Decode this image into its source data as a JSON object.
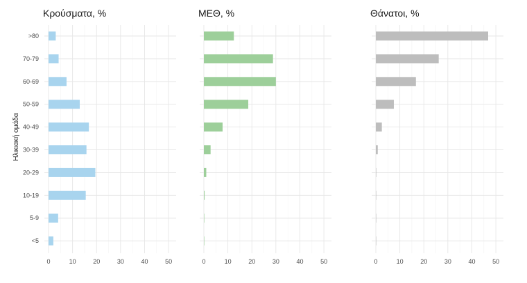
{
  "chart_data": {
    "type": "bar",
    "orientation": "horizontal",
    "ylabel": "Ηλικιακή ομάδα",
    "categories": [
      "<5",
      "5-9",
      "10-19",
      "20-29",
      "30-39",
      "40-49",
      "50-59",
      "60-69",
      "70-79",
      ">80"
    ],
    "xlim": [
      0,
      52
    ],
    "xticks": [
      0,
      10,
      20,
      30,
      40,
      50
    ],
    "grid": true,
    "panels": [
      {
        "title": "Κρούσματα, %",
        "color": "#a8d4ee",
        "values": [
          2.0,
          4.0,
          15.5,
          19.5,
          15.8,
          16.8,
          13.0,
          7.5,
          4.2,
          3.0
        ]
      },
      {
        "title": "ΜΕΘ, %",
        "color": "#9dcf9a",
        "values": [
          0.1,
          0.1,
          0.3,
          1.0,
          2.8,
          7.8,
          18.5,
          30.0,
          28.8,
          12.5
        ]
      },
      {
        "title": "Θάνατοι, %",
        "color": "#bdbdbd",
        "values": [
          0.0,
          0.0,
          0.1,
          0.2,
          0.8,
          2.5,
          7.5,
          16.7,
          26.2,
          46.8
        ]
      }
    ]
  }
}
